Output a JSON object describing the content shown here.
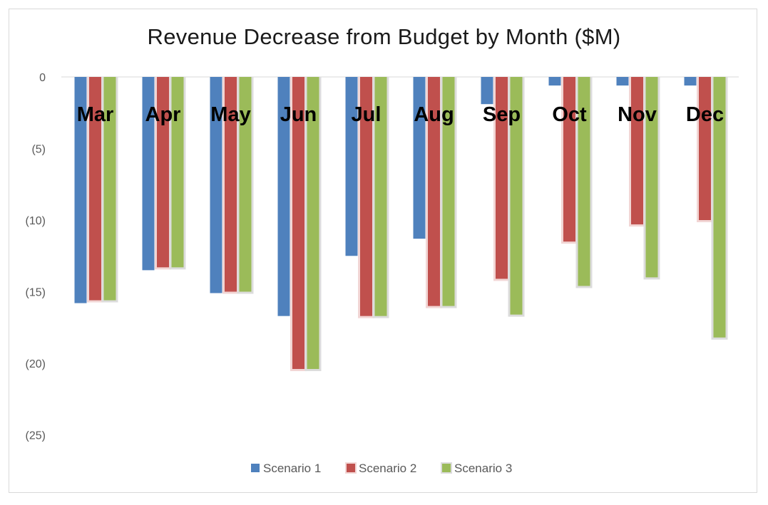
{
  "chart_data": {
    "type": "bar",
    "title": "Revenue Decrease from Budget by Month ($M)",
    "xlabel": "",
    "ylabel": "",
    "categories": [
      "Mar",
      "Apr",
      "May",
      "Jun",
      "Jul",
      "Aug",
      "Sep",
      "Oct",
      "Nov",
      "Dec"
    ],
    "ylim": [
      -25,
      0
    ],
    "yticks": [
      0,
      -5,
      -10,
      -15,
      -20,
      -25
    ],
    "ytick_labels": [
      "0",
      "(5)",
      "(10)",
      "(15)",
      "(20)",
      "(25)"
    ],
    "grid": false,
    "legend_position": "bottom",
    "series": [
      {
        "name": "Scenario 1",
        "color": "#4f81bd",
        "values": [
          -15.8,
          -13.5,
          -15.1,
          -16.7,
          -12.5,
          -11.3,
          -1.9,
          -0.6,
          -0.6,
          -0.6
        ]
      },
      {
        "name": "Scenario 2",
        "color": "#c0504d",
        "values": [
          -15.6,
          -13.3,
          -15.0,
          -20.4,
          -16.7,
          -16.0,
          -14.1,
          -11.5,
          -10.3,
          -10.0
        ]
      },
      {
        "name": "Scenario 3",
        "color": "#9bbb59",
        "values": [
          -15.6,
          -13.3,
          -15.0,
          -20.4,
          -16.7,
          -16.0,
          -16.6,
          -14.6,
          -14.0,
          -18.2
        ]
      }
    ]
  }
}
